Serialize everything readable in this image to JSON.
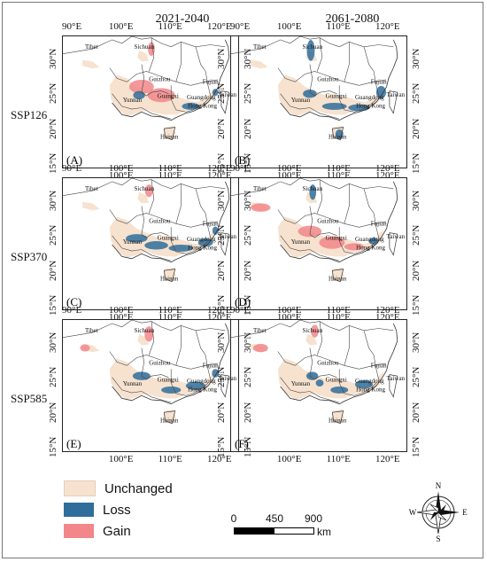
{
  "columns": [
    "2021-2040",
    "2061-2080"
  ],
  "rows": [
    "SSP126",
    "SSP370",
    "SSP585"
  ],
  "panels": [
    "(A)",
    "(B)",
    "(C)",
    "(D)",
    "(E)",
    "(F)"
  ],
  "axis": {
    "top": [
      "90°E",
      "100°E",
      "110°E",
      "120°E"
    ],
    "bottom": [
      "100°E",
      "110°E",
      "120°E"
    ],
    "left": [
      "30°N",
      "25°N",
      "20°N",
      "15°N"
    ],
    "right": [
      "30°N",
      "25°N",
      "20°N",
      "15°N"
    ]
  },
  "places": [
    "Tibet",
    "Sichuan",
    "Guizhou",
    "Yunnan",
    "Guangxi",
    "Guangdong",
    "Hong Kong",
    "Fujian",
    "Taiwan",
    "Hainan"
  ],
  "legend": [
    {
      "label": "Unchanged",
      "color": "#f6e2cf"
    },
    {
      "label": "Loss",
      "color": "#2f6d9b"
    },
    {
      "label": "Gain",
      "color": "#f2868a"
    }
  ],
  "scalebar": {
    "ticks": [
      "0",
      "450",
      "900"
    ],
    "unit": "km"
  },
  "compass": {
    "n": "N",
    "s": "S",
    "e": "E",
    "w": "W"
  }
}
